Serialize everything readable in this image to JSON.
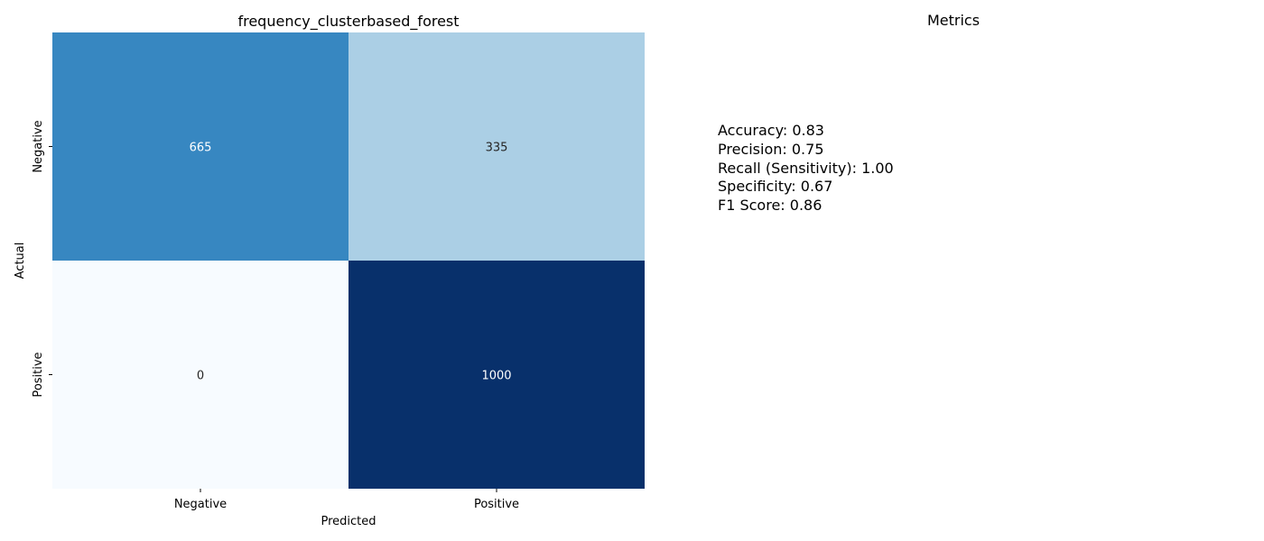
{
  "chart_data": [
    {
      "type": "heatmap",
      "title": "frequency_clusterbased_forest",
      "xlabel": "Predicted",
      "ylabel": "Actual",
      "x_categories": [
        "Negative",
        "Positive"
      ],
      "y_categories": [
        "Negative",
        "Positive"
      ],
      "values": [
        [
          665,
          335
        ],
        [
          0,
          1000
        ]
      ],
      "colormap": "Blues",
      "vmin": 0,
      "vmax": 1000,
      "colorbar": false,
      "grid": false
    }
  ],
  "metrics": {
    "title": "Metrics",
    "lines": [
      "Accuracy: 0.83",
      "Precision: 0.75",
      "Recall (Sensitivity): 1.00",
      "Specificity: 0.67",
      "F1 Score: 0.86"
    ]
  },
  "colors": {
    "blues_low": "#f7fbff",
    "blues_high": "#08306b"
  }
}
